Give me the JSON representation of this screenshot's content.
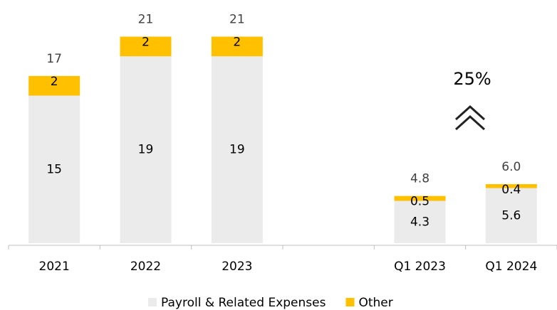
{
  "chart_data": {
    "type": "stacked_bar",
    "categories": [
      "2021",
      "2022",
      "2023",
      null,
      "Q1 2023",
      "Q1 2024"
    ],
    "series": [
      {
        "name": "Payroll & Related Expenses",
        "color": "#ebebeb",
        "values": [
          15,
          19,
          19,
          null,
          4.3,
          5.6
        ]
      },
      {
        "name": "Other",
        "color": "#ffc000",
        "values": [
          2,
          2,
          2,
          null,
          0.5,
          0.4
        ]
      }
    ],
    "totals": {
      "values": [
        17,
        21,
        21,
        null,
        4.8,
        6.0
      ],
      "value_labels": [
        "17",
        "21",
        "21",
        null,
        "4.8",
        "6.0"
      ]
    },
    "annotation": "25%",
    "ylim": [
      0,
      24
    ],
    "legend": "bottom"
  }
}
